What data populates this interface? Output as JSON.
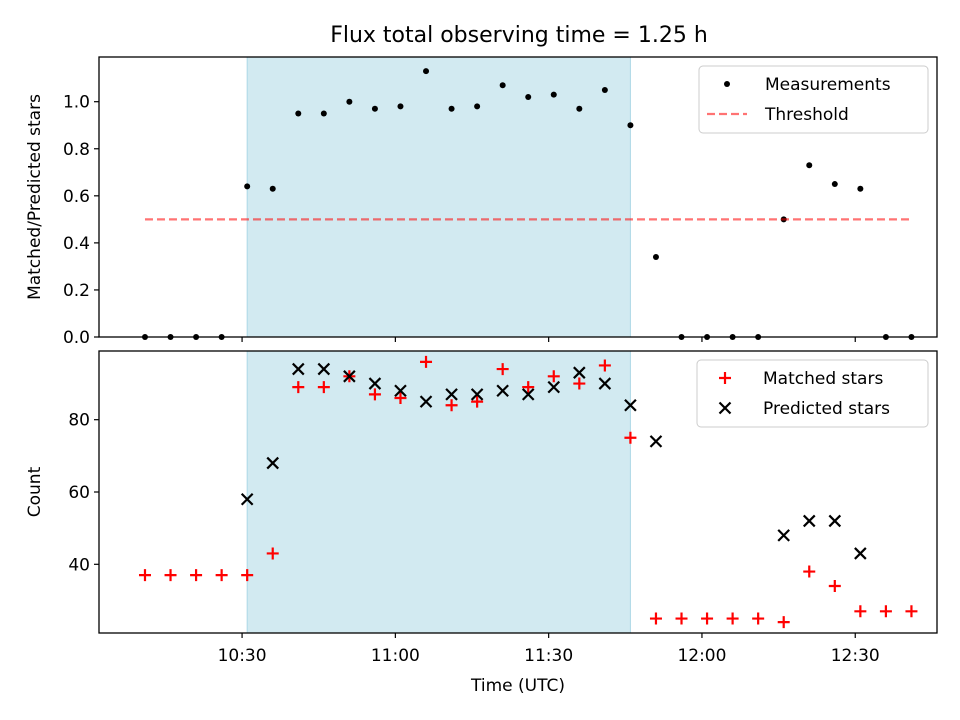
{
  "title": "Flux total observing time = 1.25 h",
  "colors": {
    "span": "#add8e6",
    "matched": "#ff0000",
    "predicted": "#000000",
    "threshold": "#ff0000",
    "measurements": "#000000"
  },
  "chart_data": [
    {
      "type": "scatter",
      "panel": "top",
      "ylabel": "Matched/Predicted stars",
      "xlabel": "",
      "ylim": [
        0,
        1.19
      ],
      "yticks": [
        0.0,
        0.2,
        0.4,
        0.6,
        0.8,
        1.0
      ],
      "ytick_labels": [
        "0.0",
        "0.2",
        "0.4",
        "0.6",
        "0.8",
        "1.0"
      ],
      "shaded_span": [
        "10:31",
        "11:46"
      ],
      "legend": {
        "placement": "top-right",
        "entries": [
          "Measurements",
          "Threshold"
        ]
      },
      "series": [
        {
          "name": "Measurements",
          "kind": "points",
          "x": [
            "10:11",
            "10:16",
            "10:21",
            "10:26",
            "10:31",
            "10:36",
            "10:41",
            "10:46",
            "10:51",
            "10:56",
            "11:01",
            "11:06",
            "11:11",
            "11:16",
            "11:21",
            "11:26",
            "11:31",
            "11:36",
            "11:41",
            "11:46",
            "11:51",
            "11:56",
            "12:01",
            "12:06",
            "12:11",
            "12:16",
            "12:21",
            "12:26",
            "12:31",
            "12:36",
            "12:41"
          ],
          "y": [
            0,
            0,
            0,
            0,
            0.64,
            0.63,
            0.95,
            0.95,
            1.0,
            0.97,
            0.98,
            1.13,
            0.97,
            0.98,
            1.07,
            1.02,
            1.03,
            0.97,
            1.05,
            0.9,
            0.34,
            0,
            0,
            0,
            0,
            0.5,
            0.73,
            0.65,
            0.63,
            0,
            0
          ]
        },
        {
          "name": "Threshold",
          "kind": "dashed-line",
          "x": [
            "10:11",
            "12:41"
          ],
          "y": [
            0.5,
            0.5
          ]
        }
      ]
    },
    {
      "type": "scatter",
      "panel": "bottom",
      "ylabel": "Count",
      "xlabel": "Time (UTC)",
      "ylim": [
        21,
        99
      ],
      "yticks": [
        40,
        60,
        80
      ],
      "ytick_labels": [
        "40",
        "60",
        "80"
      ],
      "xlim": [
        "10:02",
        "12:46"
      ],
      "xticks": [
        "10:30",
        "11:00",
        "11:30",
        "12:00",
        "12:30"
      ],
      "xtick_labels": [
        "10:30",
        "11:00",
        "11:30",
        "12:00",
        "12:30"
      ],
      "shaded_span": [
        "10:31",
        "11:46"
      ],
      "legend": {
        "placement": "top-right",
        "entries": [
          "Matched stars",
          "Predicted stars"
        ]
      },
      "series": [
        {
          "name": "Matched stars",
          "marker": "plus",
          "x": [
            "10:11",
            "10:16",
            "10:21",
            "10:26",
            "10:31",
            "10:36",
            "10:41",
            "10:46",
            "10:51",
            "10:56",
            "11:01",
            "11:06",
            "11:11",
            "11:16",
            "11:21",
            "11:26",
            "11:31",
            "11:36",
            "11:41",
            "11:46",
            "11:51",
            "11:56",
            "12:01",
            "12:06",
            "12:11",
            "12:16",
            "12:21",
            "12:26",
            "12:31",
            "12:36",
            "12:41"
          ],
          "y": [
            37,
            37,
            37,
            37,
            37,
            43,
            89,
            89,
            92,
            87,
            86,
            96,
            84,
            85,
            94,
            89,
            92,
            90,
            95,
            75,
            25,
            25,
            25,
            25,
            25,
            24,
            38,
            34,
            27,
            27,
            27
          ]
        },
        {
          "name": "Predicted stars",
          "marker": "x",
          "x": [
            "10:31",
            "10:36",
            "10:41",
            "10:46",
            "10:51",
            "10:56",
            "11:01",
            "11:06",
            "11:11",
            "11:16",
            "11:21",
            "11:26",
            "11:31",
            "11:36",
            "11:41",
            "11:46",
            "11:51",
            "12:16",
            "12:21",
            "12:26",
            "12:31"
          ],
          "y": [
            58,
            68,
            94,
            94,
            92,
            90,
            88,
            85,
            87,
            87,
            88,
            87,
            89,
            93,
            90,
            84,
            74,
            48,
            52,
            52,
            43
          ]
        }
      ]
    }
  ]
}
